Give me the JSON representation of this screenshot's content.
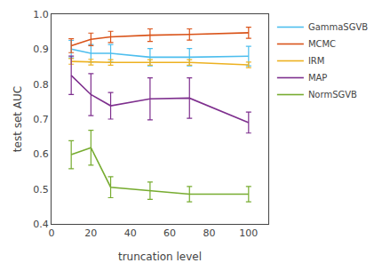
{
  "chart_data": {
    "type": "line",
    "x": [
      10,
      20,
      30,
      50,
      70,
      100
    ],
    "series": [
      {
        "name": "GammaSGVB",
        "color": "#4DBEEE",
        "values": [
          0.9,
          0.888,
          0.888,
          0.877,
          0.877,
          0.88
        ],
        "errors": [
          0.025,
          0.025,
          0.025,
          0.025,
          0.025,
          0.028
        ]
      },
      {
        "name": "MCMC",
        "color": "#D95319",
        "values": [
          0.91,
          0.928,
          0.935,
          0.94,
          0.942,
          0.947
        ],
        "errors": [
          0.02,
          0.018,
          0.016,
          0.018,
          0.016,
          0.016
        ]
      },
      {
        "name": "IRM",
        "color": "#EDB120",
        "values": [
          0.865,
          0.863,
          0.862,
          0.862,
          0.862,
          0.855
        ],
        "errors": [
          0.008,
          0.008,
          0.008,
          0.008,
          0.008,
          0.008
        ]
      },
      {
        "name": "MAP",
        "color": "#7E2F8E",
        "values": [
          0.825,
          0.77,
          0.738,
          0.758,
          0.76,
          0.69
        ],
        "errors": [
          0.055,
          0.06,
          0.038,
          0.06,
          0.058,
          0.03
        ]
      },
      {
        "name": "NormSGVB",
        "color": "#77AC30",
        "values": [
          0.598,
          0.618,
          0.505,
          0.495,
          0.485,
          0.485
        ],
        "errors": [
          0.04,
          0.05,
          0.03,
          0.025,
          0.022,
          0.022
        ]
      }
    ],
    "x_label": "truncation level",
    "y_label": "test set AUC",
    "xlim": [
      0,
      110
    ],
    "xticks": [
      0,
      20,
      40,
      60,
      80,
      100
    ],
    "ylim": [
      0.4,
      1.0
    ],
    "yticks": [
      0.4,
      0.5,
      0.6,
      0.7,
      0.8,
      0.9,
      {
        "value": 1.0,
        "label": "1.0"
      }
    ],
    "grid": false,
    "legend": "right"
  }
}
